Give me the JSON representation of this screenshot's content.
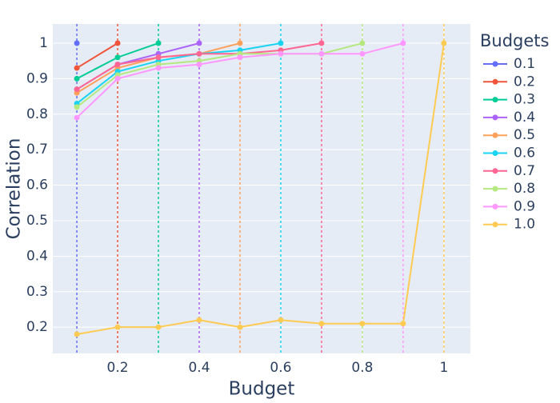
{
  "chart_data": {
    "type": "line",
    "x_label": "Budget",
    "y_label": "Correlation",
    "legend_title": "Budgets",
    "xlim": [
      0.041,
      1.065
    ],
    "ylim": [
      0.126,
      1.054
    ],
    "xticks": [
      0.2,
      0.4,
      0.6,
      0.8,
      1
    ],
    "yticks": [
      0.2,
      0.3,
      0.4,
      0.5,
      0.6,
      0.7,
      0.8,
      0.9,
      1
    ],
    "grid": true,
    "legend": "right",
    "series": [
      {
        "name": "0.1",
        "color": "#636efa",
        "x": [
          0.1
        ],
        "values": [
          1.0
        ]
      },
      {
        "name": "0.2",
        "color": "#EF553B",
        "x": [
          0.1,
          0.2
        ],
        "values": [
          0.93,
          1.0
        ]
      },
      {
        "name": "0.3",
        "color": "#00cc96",
        "x": [
          0.1,
          0.2,
          0.3
        ],
        "values": [
          0.9,
          0.96,
          1.0
        ]
      },
      {
        "name": "0.4",
        "color": "#ab63fa",
        "x": [
          0.1,
          0.2,
          0.3,
          0.4
        ],
        "values": [
          0.87,
          0.94,
          0.97,
          1.0
        ]
      },
      {
        "name": "0.5",
        "color": "#FFA15A",
        "x": [
          0.1,
          0.2,
          0.3,
          0.4,
          0.5
        ],
        "values": [
          0.86,
          0.93,
          0.96,
          0.97,
          1.0
        ]
      },
      {
        "name": "0.6",
        "color": "#19d3f3",
        "x": [
          0.1,
          0.2,
          0.3,
          0.4,
          0.5,
          0.6
        ],
        "values": [
          0.83,
          0.92,
          0.95,
          0.97,
          0.98,
          1.0
        ]
      },
      {
        "name": "0.7",
        "color": "#FF6692",
        "x": [
          0.1,
          0.2,
          0.3,
          0.4,
          0.5,
          0.6,
          0.7
        ],
        "values": [
          0.87,
          0.94,
          0.96,
          0.97,
          0.97,
          0.98,
          1.0
        ]
      },
      {
        "name": "0.8",
        "color": "#B6E880",
        "x": [
          0.1,
          0.2,
          0.3,
          0.4,
          0.5,
          0.6,
          0.7,
          0.8
        ],
        "values": [
          0.82,
          0.91,
          0.94,
          0.95,
          0.97,
          0.97,
          0.97,
          1.0
        ]
      },
      {
        "name": "0.9",
        "color": "#FF97FF",
        "x": [
          0.1,
          0.2,
          0.3,
          0.4,
          0.5,
          0.6,
          0.7,
          0.8,
          0.9
        ],
        "values": [
          0.79,
          0.9,
          0.93,
          0.94,
          0.96,
          0.97,
          0.97,
          0.97,
          1.0
        ]
      },
      {
        "name": "1.0",
        "color": "#FECB52",
        "x": [
          0.1,
          0.2,
          0.3,
          0.4,
          0.5,
          0.6,
          0.7,
          0.8,
          0.9,
          1.0
        ],
        "values": [
          0.18,
          0.2,
          0.2,
          0.22,
          0.2,
          0.22,
          0.21,
          0.21,
          0.21,
          1.0
        ]
      }
    ]
  }
}
